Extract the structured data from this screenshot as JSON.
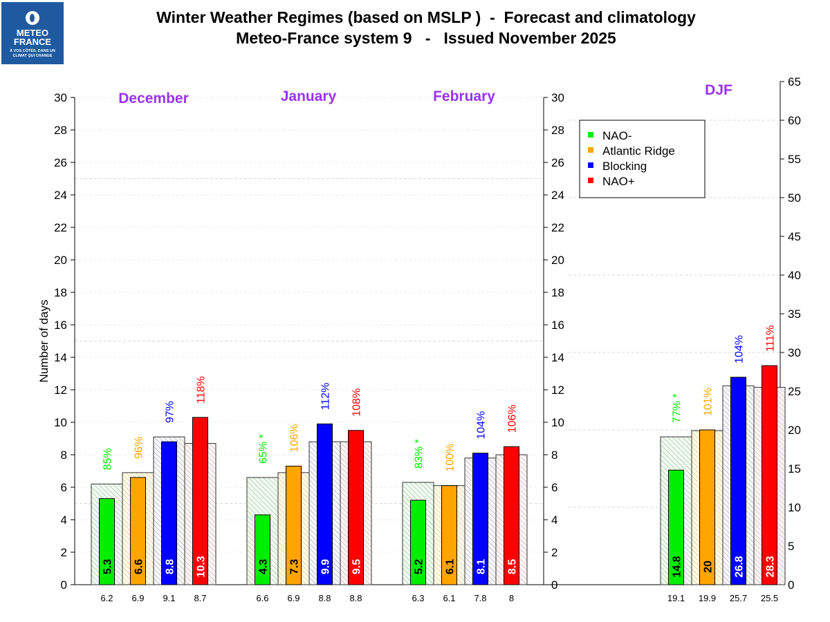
{
  "header": {
    "title_line1": "Winter Weather Regimes (based on MSLP )  -  Forecast and climatology",
    "title_line2": "Meteo-France system 9   -   Issued November 2025",
    "logo": {
      "line1": "METEO",
      "line2": "FRANCE",
      "tagline": "À VOS CÔTÉS, DANS UN CLIMAT QUI CHANGE",
      "color": "#1f5aa0"
    }
  },
  "chart_data": {
    "type": "bar",
    "ylabel": "Number of days",
    "ylim_monthly": [
      0,
      30
    ],
    "yticks_monthly": [
      0,
      2,
      4,
      6,
      8,
      10,
      12,
      14,
      16,
      18,
      20,
      22,
      24,
      26,
      28,
      30
    ],
    "ylim_seasonal": [
      0,
      65
    ],
    "yticks_seasonal": [
      0,
      5,
      10,
      15,
      20,
      25,
      30,
      35,
      40,
      45,
      50,
      55,
      60,
      65
    ],
    "grid": true,
    "legend_position": "top-right",
    "regimes": [
      {
        "name": "NAO-",
        "color": "#00ee00",
        "hatch_color": "#7cba7c",
        "clim_fill": "#f2f9f2"
      },
      {
        "name": "Atlantic Ridge",
        "color": "#ffa500",
        "hatch_color": "#c8b27a",
        "clim_fill": "#fffbe6"
      },
      {
        "name": "Blocking",
        "color": "#0000ff",
        "hatch_color": "#9a9aa8",
        "clim_fill": "#f6f6fa"
      },
      {
        "name": "NAO+",
        "color": "#ff0000",
        "hatch_color": "#c8a0a0",
        "clim_fill": "#faf4f4"
      }
    ],
    "periods": [
      {
        "name": "December",
        "axis": "monthly",
        "forecast": [
          5.3,
          6.6,
          8.8,
          10.3
        ],
        "forecast_labels": [
          "5.3",
          "6.6",
          "8.8",
          "10.3"
        ],
        "climatology": [
          6.2,
          6.9,
          9.1,
          8.7
        ],
        "climatology_labels": [
          "6.2",
          "6.9",
          "9.1",
          "8.7"
        ],
        "percentages": [
          "85%",
          "96%",
          "97%",
          "118%"
        ]
      },
      {
        "name": "January",
        "axis": "monthly",
        "forecast": [
          4.3,
          7.3,
          9.9,
          9.5
        ],
        "forecast_labels": [
          "4.3",
          "7.3",
          "9.9",
          "9.5"
        ],
        "climatology": [
          6.6,
          6.9,
          8.8,
          8.8
        ],
        "climatology_labels": [
          "6.6",
          "6.9",
          "8.8",
          "8.8"
        ],
        "percentages": [
          "65% *",
          "106%",
          "112%",
          "108%"
        ]
      },
      {
        "name": "February",
        "axis": "monthly",
        "forecast": [
          5.2,
          6.1,
          8.1,
          8.5
        ],
        "forecast_labels": [
          "5.2",
          "6.1",
          "8.1",
          "8.5"
        ],
        "climatology": [
          6.3,
          6.1,
          7.8,
          8.0
        ],
        "climatology_labels": [
          "6.3",
          "6.1",
          "7.8",
          "8"
        ],
        "percentages": [
          "83% *",
          "100%",
          "104%",
          "106%"
        ]
      },
      {
        "name": "DJF",
        "axis": "seasonal",
        "forecast": [
          14.8,
          20,
          26.8,
          28.3
        ],
        "forecast_labels": [
          "14.8",
          "20",
          "26.8",
          "28.3"
        ],
        "climatology": [
          19.1,
          19.9,
          25.7,
          25.5
        ],
        "climatology_labels": [
          "19.1",
          "19.9",
          "25.7",
          "25.5"
        ],
        "percentages": [
          "77% *",
          "101%",
          "104%",
          "111%"
        ]
      }
    ]
  }
}
